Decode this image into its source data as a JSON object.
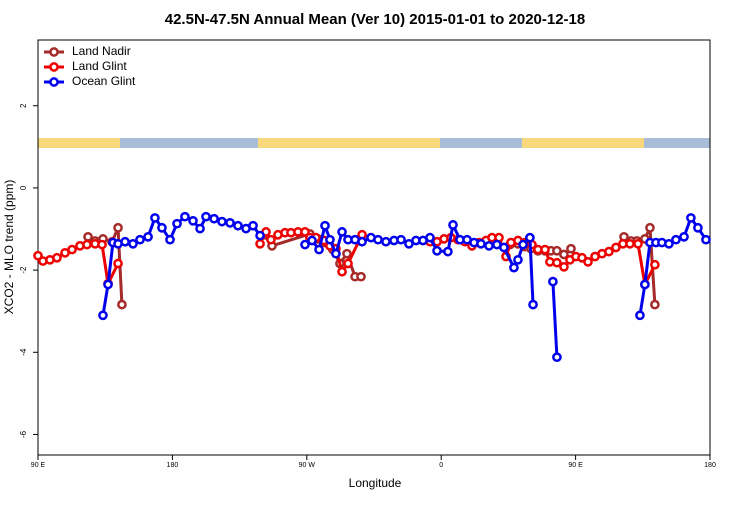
{
  "chart_data": {
    "type": "line",
    "title": "42.5N-47.5N Annual Mean (Ver 10)   2015-01-01 to 2020-12-18",
    "xlabel": "Longitude",
    "ylabel": "XCO2 - MLO trend (ppm)",
    "xlim": [
      90,
      540
    ],
    "ylim": [
      -6.5,
      3.6
    ],
    "xticks": [
      {
        "value": 90,
        "label": "90 E"
      },
      {
        "value": 180,
        "label": "180"
      },
      {
        "value": 270,
        "label": "90 W"
      },
      {
        "value": 360,
        "label": "0"
      },
      {
        "value": 450,
        "label": "90 E"
      },
      {
        "value": 540,
        "label": "180"
      }
    ],
    "yticks": [
      -6,
      -4,
      -2,
      0,
      2
    ],
    "grid": false,
    "legend": "top-left",
    "series": [
      {
        "name": "Land Nadir",
        "color": "#a52a2a",
        "x": [
          123.5,
          128.2,
          133.5,
          139.6,
          143.6,
          146.2,
          null,
          242.0,
          246.7,
          272.1,
          277.5,
          282.2,
          287.5,
          292.2,
          296.9,
          302.3,
          306.3,
          null,
          406.1,
          411.4,
          416.1,
          420.1,
          424.8,
          429.5,
          433.5,
          437.5,
          442.2,
          446.9,
          null,
          482.4,
          487.1,
          491.1,
          496.4,
          499.8,
          503.1
        ],
        "values": [
          -1.19,
          -1.29,
          -1.24,
          -1.31,
          -0.97,
          -2.84,
          null,
          -1.14,
          -1.41,
          -1.12,
          -1.24,
          -1.33,
          -1.5,
          -1.84,
          -1.6,
          -2.16,
          -2.16,
          null,
          -1.38,
          -1.36,
          -1.43,
          -1.48,
          -1.53,
          -1.53,
          -1.53,
          -1.53,
          -1.62,
          -1.48,
          null,
          -1.19,
          -1.29,
          -1.29,
          -1.24,
          -0.97,
          -2.84
        ]
      },
      {
        "name": "Land Glint",
        "color": "#ee0000",
        "x": [
          90,
          93.3,
          98.0,
          102.7,
          108.1,
          112.8,
          118.1,
          122.8,
          128.2,
          132.9,
          136.9,
          143.6,
          null,
          238.7,
          242.7,
          246.0,
          250.7,
          255.4,
          259.4,
          264.1,
          268.8,
          272.1,
          276.1,
          281.5,
          285.5,
          289.5,
          293.6,
          297.6,
          307.0,
          null,
          352.5,
          357.2,
          361.9,
          366.5,
          371.2,
          375.9,
          380.6,
          385.3,
          390.0,
          394.0,
          398.7,
          403.4,
          406.7,
          411.4,
          416.1,
          420.8,
          424.8,
          429.5,
          432.8,
          437.5,
          442.2,
          446.2,
          450.2,
          454.3,
          458.3,
          463.0,
          467.7,
          472.3,
          477.0,
          481.7,
          486.4,
          491.8,
          496.4,
          503.1
        ],
        "values": [
          -1.65,
          -1.78,
          -1.75,
          -1.7,
          -1.58,
          -1.5,
          -1.41,
          -1.38,
          -1.36,
          -1.38,
          -2.33,
          -1.84,
          null,
          -1.36,
          -1.07,
          -1.26,
          -1.14,
          -1.09,
          -1.09,
          -1.07,
          -1.07,
          -1.21,
          -1.21,
          -1.28,
          -1.41,
          -1.48,
          -2.04,
          -1.84,
          -1.14,
          null,
          -1.31,
          -1.31,
          -1.24,
          -1.21,
          -1.26,
          -1.31,
          -1.41,
          -1.33,
          -1.28,
          -1.21,
          -1.21,
          -1.67,
          -1.33,
          -1.28,
          -1.33,
          -1.38,
          -1.5,
          -1.5,
          -1.8,
          -1.82,
          -1.92,
          -1.75,
          -1.67,
          -1.7,
          -1.8,
          -1.67,
          -1.6,
          -1.55,
          -1.45,
          -1.36,
          -1.36,
          -1.36,
          -2.35,
          -1.87
        ]
      },
      {
        "name": "Ocean Glint",
        "color": "#0000ee",
        "x": [
          133.5,
          136.9,
          140.2,
          143.6,
          148.3,
          153.6,
          158.3,
          163.7,
          168.3,
          173.0,
          178.4,
          183.1,
          188.4,
          193.8,
          198.5,
          202.5,
          207.9,
          213.2,
          218.6,
          223.9,
          229.3,
          234.0,
          238.7,
          null,
          268.8,
          273.5,
          278.2,
          282.2,
          285.5,
          289.5,
          293.6,
          297.6,
          302.3,
          307.0,
          313.0,
          317.7,
          323.0,
          328.4,
          333.1,
          338.4,
          343.1,
          347.8,
          352.5,
          357.2,
          364.5,
          367.9,
          372.6,
          377.3,
          382.0,
          386.6,
          392.0,
          397.3,
          402.0,
          408.7,
          411.4,
          414.8,
          419.4,
          421.5,
          null,
          434.8,
          437.5,
          null,
          493.1,
          496.4,
          499.8,
          503.8,
          507.8,
          512.5,
          517.2,
          522.6,
          527.2,
          531.9,
          537.3
        ],
        "values": [
          -3.1,
          -2.35,
          -1.33,
          -1.36,
          -1.31,
          -1.36,
          -1.26,
          -1.19,
          -0.73,
          -0.97,
          -1.26,
          -0.87,
          -0.7,
          -0.8,
          -0.99,
          -0.7,
          -0.75,
          -0.82,
          -0.85,
          -0.92,
          -0.99,
          -0.92,
          -1.16,
          null,
          -1.38,
          -1.28,
          -1.5,
          -0.92,
          -1.26,
          -1.6,
          -1.07,
          -1.26,
          -1.26,
          -1.31,
          -1.21,
          -1.26,
          -1.31,
          -1.28,
          -1.26,
          -1.36,
          -1.28,
          -1.28,
          -1.21,
          -1.53,
          -1.55,
          -0.9,
          -1.26,
          -1.26,
          -1.33,
          -1.36,
          -1.41,
          -1.38,
          -1.45,
          -1.94,
          -1.75,
          -1.38,
          -1.21,
          -2.84,
          null,
          -2.28,
          -4.12,
          null,
          -3.1,
          -2.35,
          -1.33,
          -1.33,
          -1.33,
          -1.36,
          -1.26,
          -1.19,
          -0.73,
          -0.97,
          -1.26
        ]
      }
    ]
  }
}
